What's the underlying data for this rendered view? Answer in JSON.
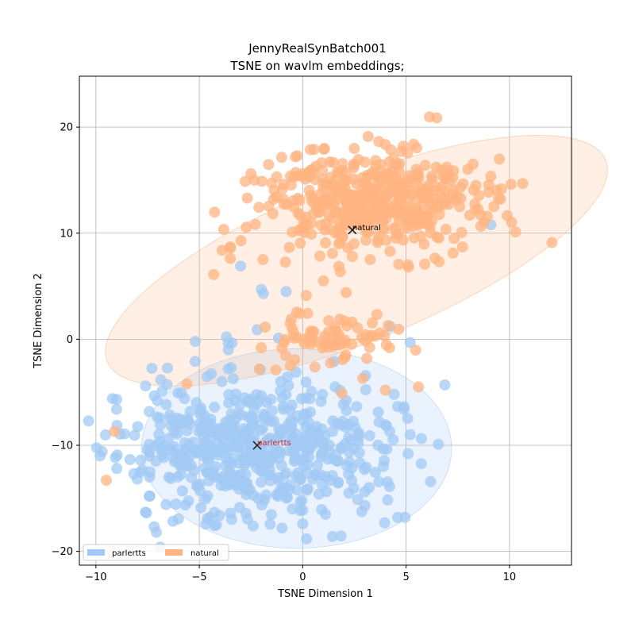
{
  "chart_data": {
    "type": "scatter",
    "title": "JennyRealSynBatch001",
    "subtitle": "TSNE on wavlm embeddings;",
    "xlabel": "TSNE Dimension 1",
    "ylabel": "TSNE Dimension 2",
    "xlim": [
      -10.8,
      13.0
    ],
    "ylim": [
      -21.3,
      24.8
    ],
    "xticks": [
      -10,
      -5,
      0,
      5,
      10
    ],
    "yticks": [
      -20,
      -10,
      0,
      10,
      20
    ],
    "grid": true,
    "legend": {
      "position": "lower-left",
      "columns": 2
    },
    "series": [
      {
        "name": "parlertts",
        "color": "#a1c9f4",
        "centroid": {
          "x": -2.2,
          "y": -10.0,
          "label": "parlertts",
          "label_color": "#d62728"
        },
        "ellipse": {
          "cx": -0.3,
          "cy": -10.3,
          "rx": 7.5,
          "ry": 9.4,
          "angle_deg": 0,
          "fill": "#a1c9f4",
          "opacity": 0.22
        },
        "cluster": {
          "cx": -2.4,
          "cy": -10.2,
          "sx": 3.2,
          "sy": 3.3,
          "n": 560,
          "seed": 11
        },
        "outliers": [
          [
            -3.0,
            6.9
          ],
          [
            -2.0,
            4.7
          ],
          [
            -1.9,
            4.3
          ],
          [
            -0.8,
            4.5
          ],
          [
            -2.2,
            0.9
          ],
          [
            -5.2,
            -0.2
          ],
          [
            -3.6,
            -0.4
          ],
          [
            -3.6,
            -1.0
          ],
          [
            -5.2,
            -2.1
          ],
          [
            -3.6,
            -2.8
          ],
          [
            9.1,
            10.8
          ],
          [
            -9.8,
            -11.0
          ],
          [
            -9.2,
            -5.6
          ],
          [
            -9.0,
            -6.6
          ],
          [
            -7.6,
            -4.4
          ],
          [
            -4.5,
            -16.8
          ],
          [
            -1.0,
            -17.8
          ],
          [
            0.0,
            -17.4
          ],
          [
            4.9,
            -6.6
          ],
          [
            5.2,
            -9.0
          ],
          [
            3.9,
            -12.0
          ],
          [
            1.1,
            -16.5
          ],
          [
            -2.4,
            -17.6
          ],
          [
            3.0,
            -14.4
          ],
          [
            4.2,
            -13.9
          ]
        ]
      },
      {
        "name": "natural",
        "color": "#ffb482",
        "centroid": {
          "x": 2.4,
          "y": 10.3,
          "label": "natural",
          "label_color": "#000000"
        },
        "ellipse": {
          "cx": 2.6,
          "cy": 7.4,
          "rx": 13.0,
          "ry": 7.6,
          "angle_deg": -22,
          "fill": "#ffb482",
          "opacity": 0.22
        },
        "cluster": {
          "cx": 3.2,
          "cy": 13.0,
          "sx": 2.6,
          "sy": 2.4,
          "n": 470,
          "seed": 23
        },
        "bridge": {
          "cx": 1.7,
          "cy": 0.4,
          "sx": 1.3,
          "sy": 1.2,
          "n": 70,
          "seed": 37
        },
        "outliers": [
          [
            -4.3,
            6.1
          ],
          [
            -3.5,
            8.6
          ],
          [
            -3.5,
            8.7
          ],
          [
            1.0,
            5.5
          ],
          [
            2.1,
            4.4
          ],
          [
            -9.5,
            -13.3
          ],
          [
            -9.1,
            -8.7
          ],
          [
            -5.6,
            -4.2
          ],
          [
            -2.1,
            -2.8
          ],
          [
            -1.3,
            -2.9
          ],
          [
            -0.6,
            -2.5
          ],
          [
            1.9,
            -5.1
          ],
          [
            2.9,
            -3.7
          ],
          [
            4.0,
            -4.8
          ],
          [
            5.6,
            -4.5
          ],
          [
            3.1,
            -1.8
          ],
          [
            -2.0,
            -0.8
          ],
          [
            -0.9,
            -0.3
          ],
          [
            -0.4,
            0.1
          ],
          [
            -0.5,
            1.0
          ],
          [
            -0.6,
            1.5
          ],
          [
            4.2,
            -0.8
          ],
          [
            5.1,
            7.0
          ],
          [
            6.6,
            7.3
          ],
          [
            2.4,
            7.8
          ],
          [
            -0.5,
            10.1
          ]
        ]
      }
    ]
  }
}
